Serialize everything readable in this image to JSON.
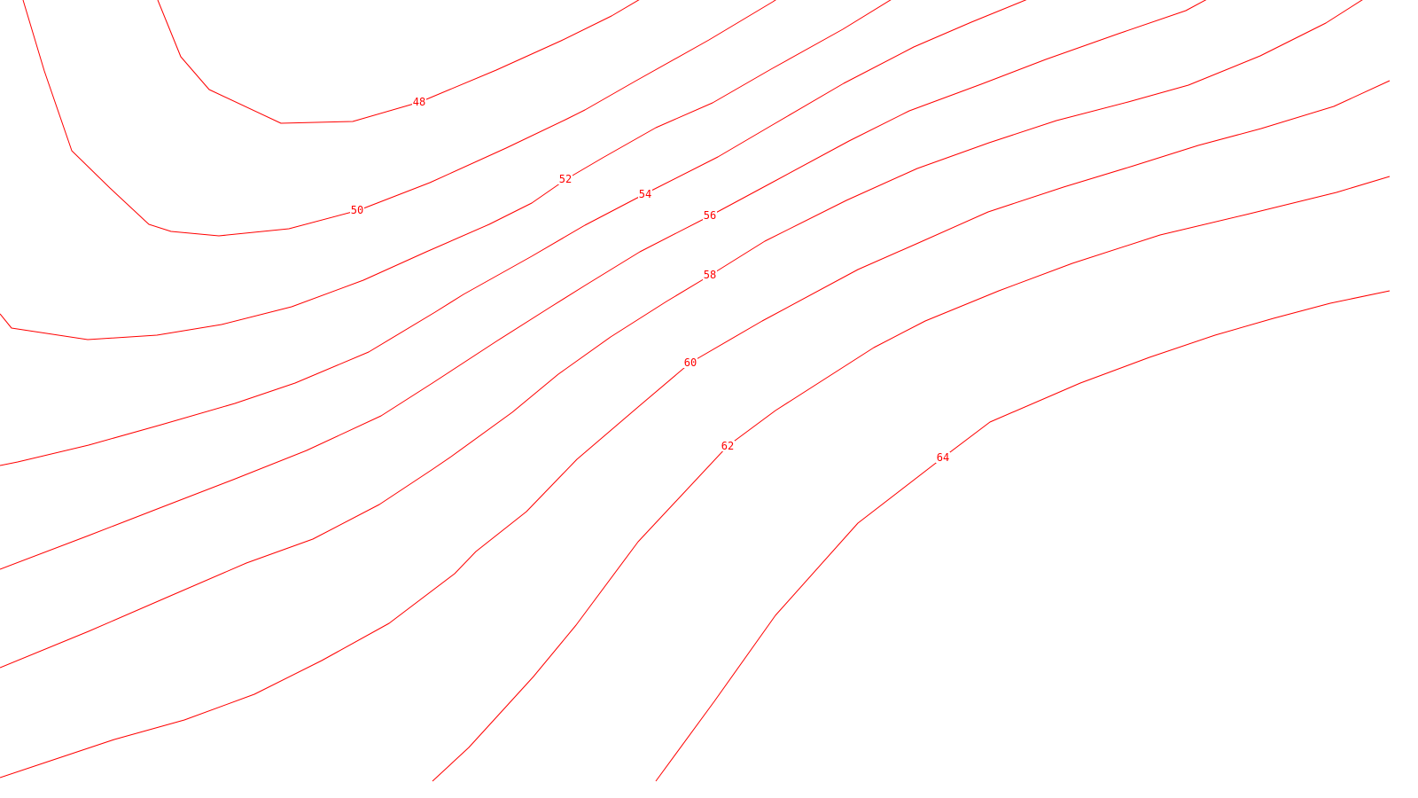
{
  "map": {
    "type": "contour-map",
    "line_color": "#ff0000",
    "background_color": "#ffffff",
    "contour_interval": 2,
    "contours": [
      {
        "level": 48,
        "label": "48"
      },
      {
        "level": 50,
        "label": "50"
      },
      {
        "level": 52,
        "label": "52"
      },
      {
        "level": 54,
        "label": "54"
      },
      {
        "level": 56,
        "label": "56"
      },
      {
        "level": 58,
        "label": "58"
      },
      {
        "level": 60,
        "label": "60"
      },
      {
        "level": 62,
        "label": "62"
      },
      {
        "level": 64,
        "label": "64"
      }
    ]
  }
}
